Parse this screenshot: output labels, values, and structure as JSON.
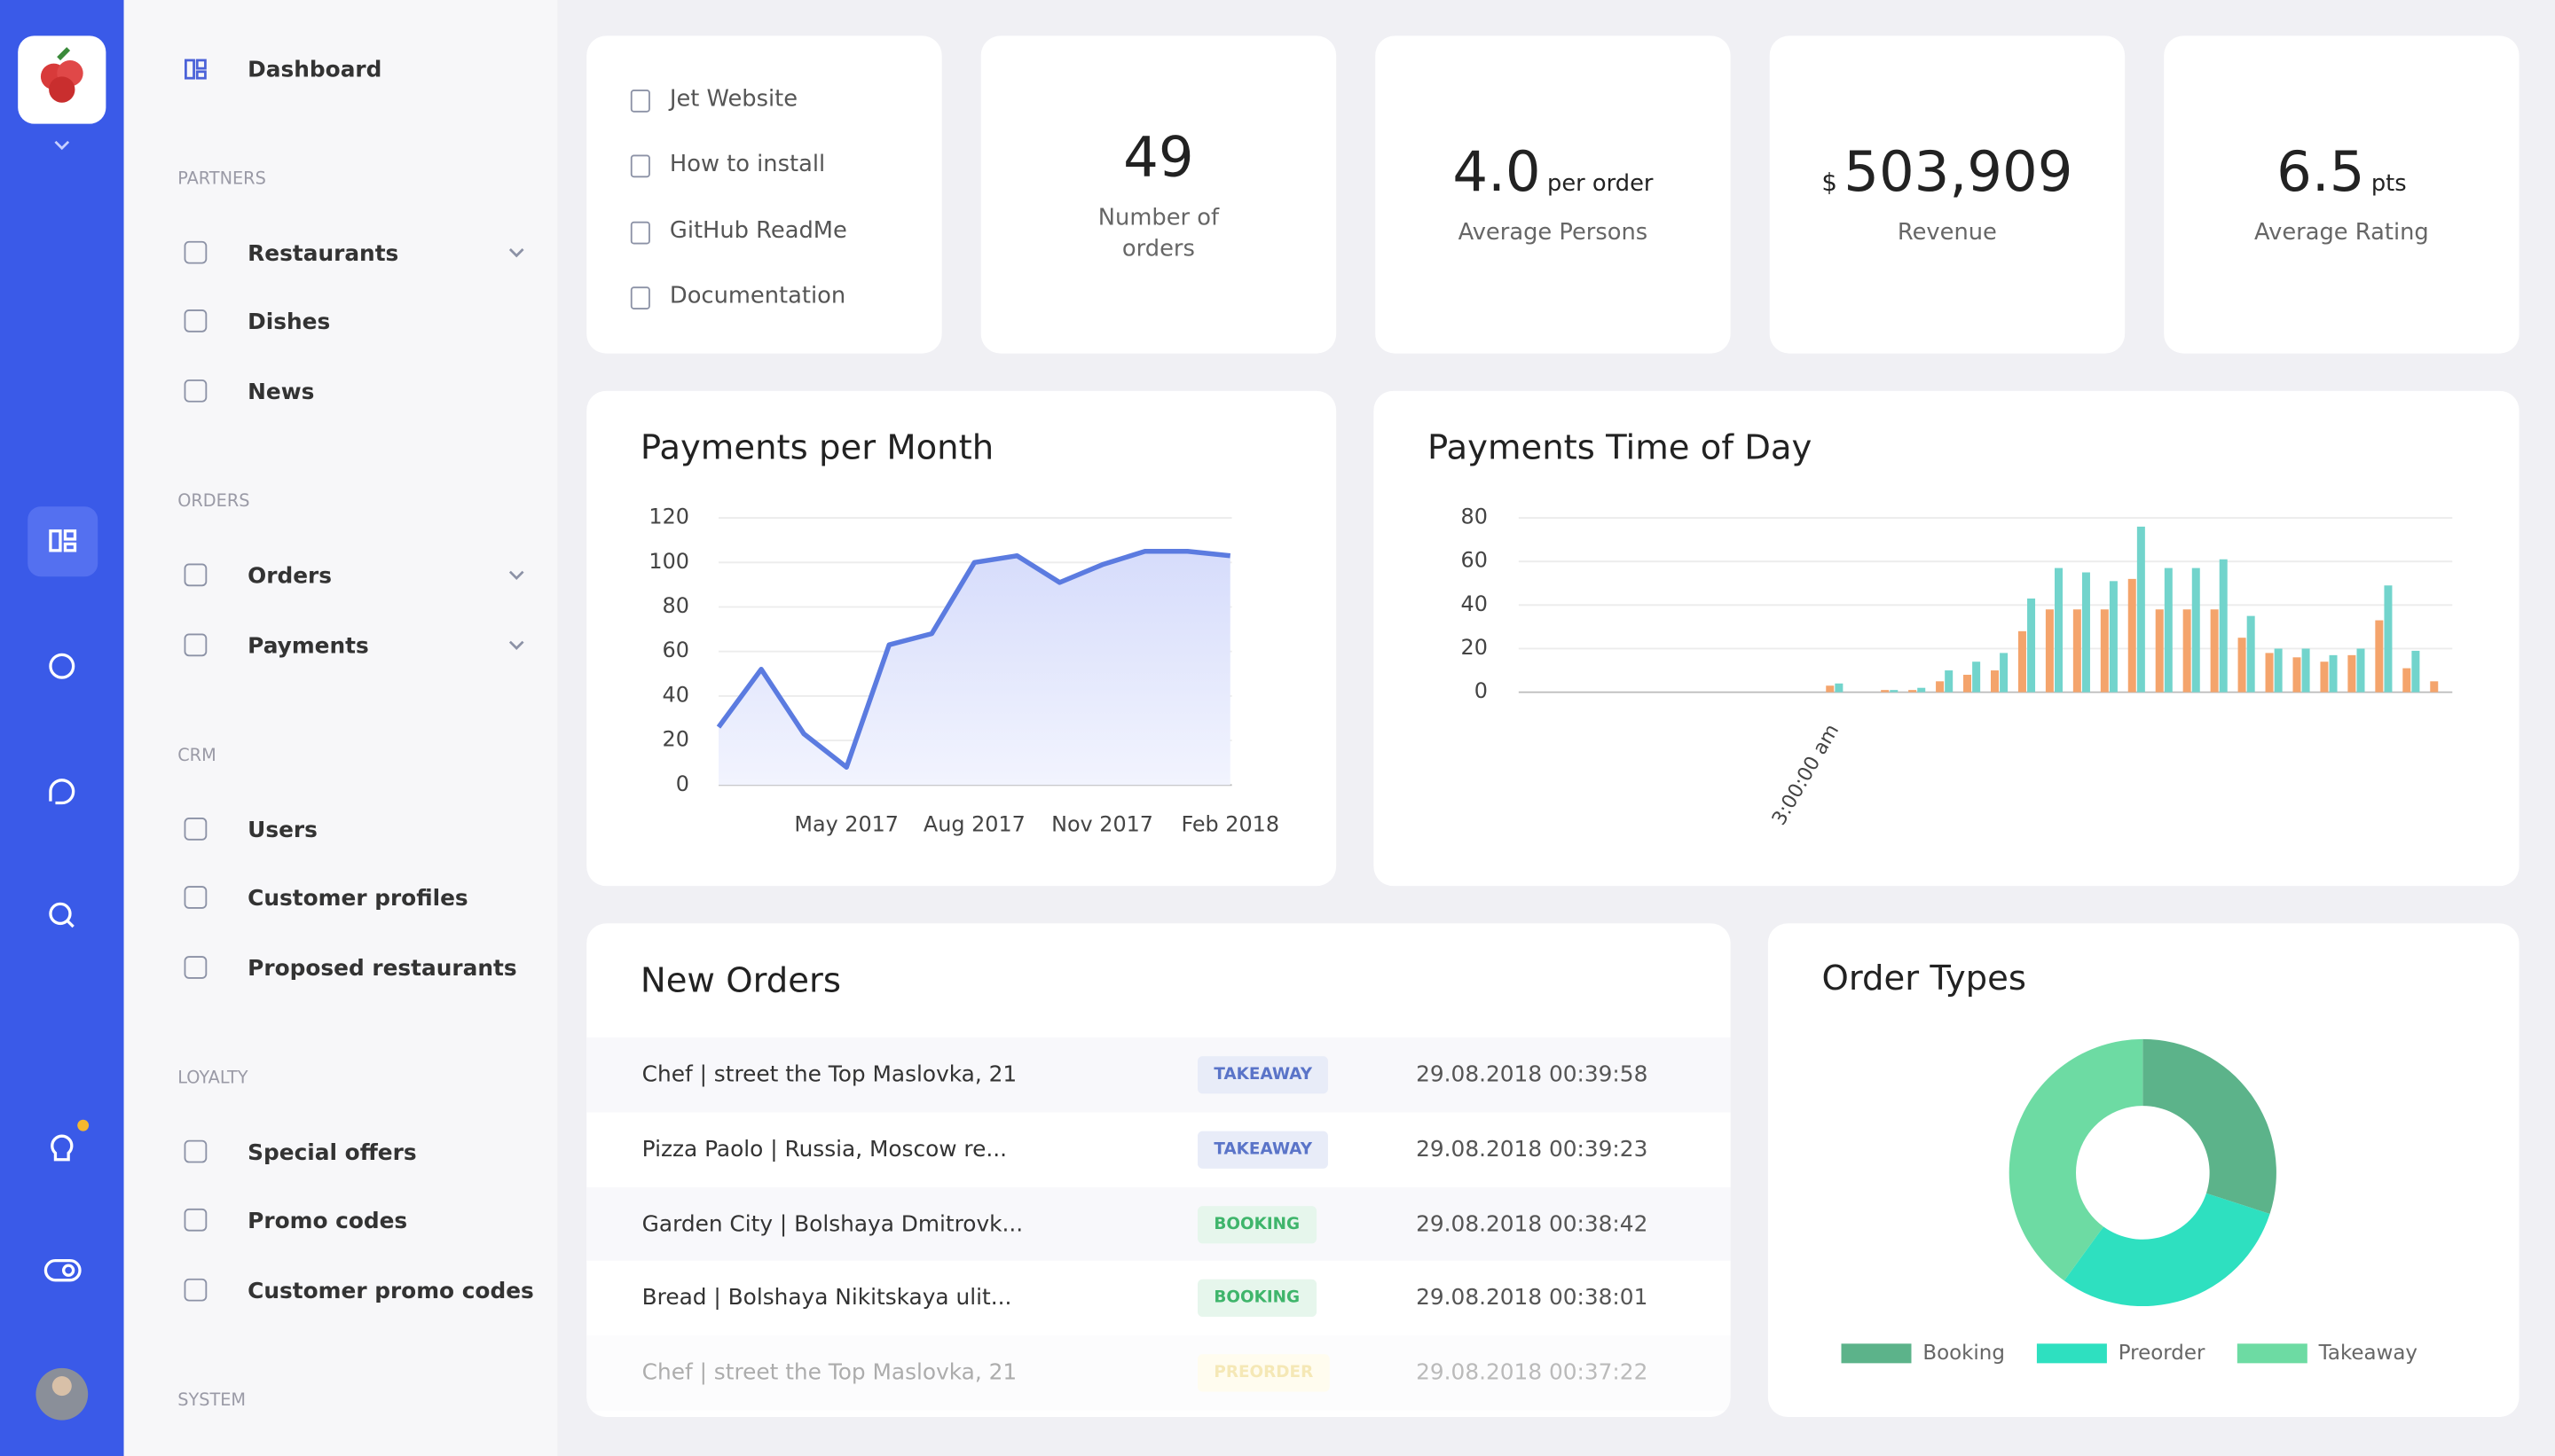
{
  "sidebar": {
    "dashboard": "Dashboard",
    "sections": [
      {
        "title": "PARTNERS",
        "items": [
          "Restaurants",
          "Dishes",
          "News"
        ]
      },
      {
        "title": "ORDERS",
        "items": [
          "Orders",
          "Payments"
        ]
      },
      {
        "title": "CRM",
        "items": [
          "Users",
          "Customer profiles",
          "Proposed restaurants"
        ]
      },
      {
        "title": "LOYALTY",
        "items": [
          "Special offers",
          "Promo codes",
          "Customer promo codes"
        ]
      },
      {
        "title": "SYSTEM"
      }
    ]
  },
  "links": [
    "Jet Website",
    "How to install",
    "GitHub ReadMe",
    "Documentation"
  ],
  "stats": [
    {
      "value": "49",
      "label": "Number of orders"
    },
    {
      "value": "4.0",
      "unit": "per order",
      "label": "Average Persons"
    },
    {
      "prefix": "$",
      "value": "503,909",
      "label": "Revenue"
    },
    {
      "value": "6.5",
      "unit": "pts",
      "label": "Average Rating"
    }
  ],
  "new_orders": {
    "title": "New Orders",
    "rows": [
      {
        "name": "Chef | street the Top Maslovka, 21",
        "type": "TAKEAWAY",
        "date": "29.08.2018 00:39:58"
      },
      {
        "name": "Pizza Paolo | Russia, Moscow re...",
        "type": "TAKEAWAY",
        "date": "29.08.2018 00:39:23"
      },
      {
        "name": "Garden City | Bolshaya Dmitrovk...",
        "type": "BOOKING",
        "date": "29.08.2018 00:38:42"
      },
      {
        "name": "Bread | Bolshaya Nikitskaya ulit...",
        "type": "BOOKING",
        "date": "29.08.2018 00:38:01"
      },
      {
        "name": "Chef | street the Top Maslovka, 21",
        "type": "PREORDER",
        "date": "29.08.2018 00:37:22"
      }
    ]
  },
  "chart_data": [
    {
      "type": "line",
      "title": "Payments per Month",
      "categories": [
        null,
        null,
        null,
        "May 2017",
        null,
        null,
        "Aug 2017",
        null,
        null,
        "Nov 2017",
        null,
        null,
        "Feb 2018"
      ],
      "values": [
        26,
        52,
        23,
        8,
        63,
        68,
        100,
        103,
        91,
        99,
        105,
        105,
        103
      ],
      "color": "#5b7be0",
      "ylim": [
        0,
        120
      ],
      "yticks": [
        0,
        20,
        40,
        60,
        80,
        100,
        120
      ],
      "grid": true
    },
    {
      "type": "bar",
      "title": "Payments Time of Day",
      "categories": [
        null,
        null,
        null,
        null,
        null,
        null,
        null,
        null,
        null,
        null,
        null,
        "3:00:00 am",
        null,
        null,
        null,
        null,
        null,
        null,
        null,
        null,
        null,
        null,
        null,
        null,
        null,
        null,
        null,
        null,
        null,
        null,
        null,
        null,
        null,
        null
      ],
      "series": [
        {
          "color": "#f4a46c",
          "values": [
            0,
            0,
            0,
            0,
            0,
            0,
            0,
            0,
            0,
            0,
            0,
            3,
            0,
            1,
            1,
            5,
            8,
            10,
            28,
            38,
            38,
            38,
            52,
            38,
            38,
            38,
            25,
            18,
            16,
            14,
            17,
            33,
            11,
            5
          ]
        },
        {
          "color": "#72d4cc",
          "values": [
            0,
            0,
            0,
            0,
            0,
            0,
            0,
            0,
            0,
            0,
            0,
            4,
            0,
            1,
            2,
            10,
            14,
            18,
            43,
            57,
            55,
            51,
            76,
            57,
            57,
            61,
            35,
            20,
            20,
            17,
            20,
            49,
            19,
            0
          ]
        }
      ],
      "ylim": [
        0,
        80
      ],
      "yticks": [
        0,
        20,
        40,
        60,
        80
      ],
      "grid": true
    },
    {
      "type": "pie",
      "title": "Order Types",
      "categories": [
        "Booking",
        "Preorder",
        "Takeaway"
      ],
      "values": [
        30,
        30,
        40
      ],
      "colors": [
        "#5cb38a",
        "#2ee0c0",
        "#6ddba3"
      ]
    }
  ]
}
